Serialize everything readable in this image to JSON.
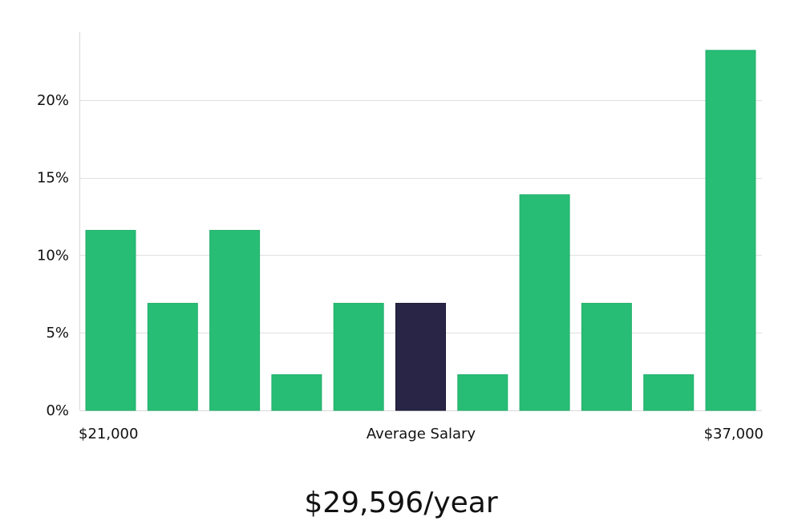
{
  "chart_data": {
    "type": "bar",
    "values": [
      11.6,
      6.9,
      11.6,
      2.3,
      6.9,
      6.9,
      2.3,
      13.9,
      6.9,
      2.3,
      23.2
    ],
    "highlight_index": 5,
    "y_ticks": [
      0,
      5,
      10,
      15,
      20
    ],
    "y_tick_labels": [
      "0%",
      "5%",
      "10%",
      "15%",
      "20%"
    ],
    "ylim": [
      0,
      25
    ],
    "x_min_label": "$21,000",
    "x_center_label": "Average Salary",
    "x_max_label": "$37,000",
    "grid": "horizontal",
    "colors": {
      "bar": "#27bd75",
      "highlight": "#282546",
      "grid": "#e0e0e0",
      "axis": "#d8d8d8"
    }
  },
  "headline": "$29,596/year"
}
